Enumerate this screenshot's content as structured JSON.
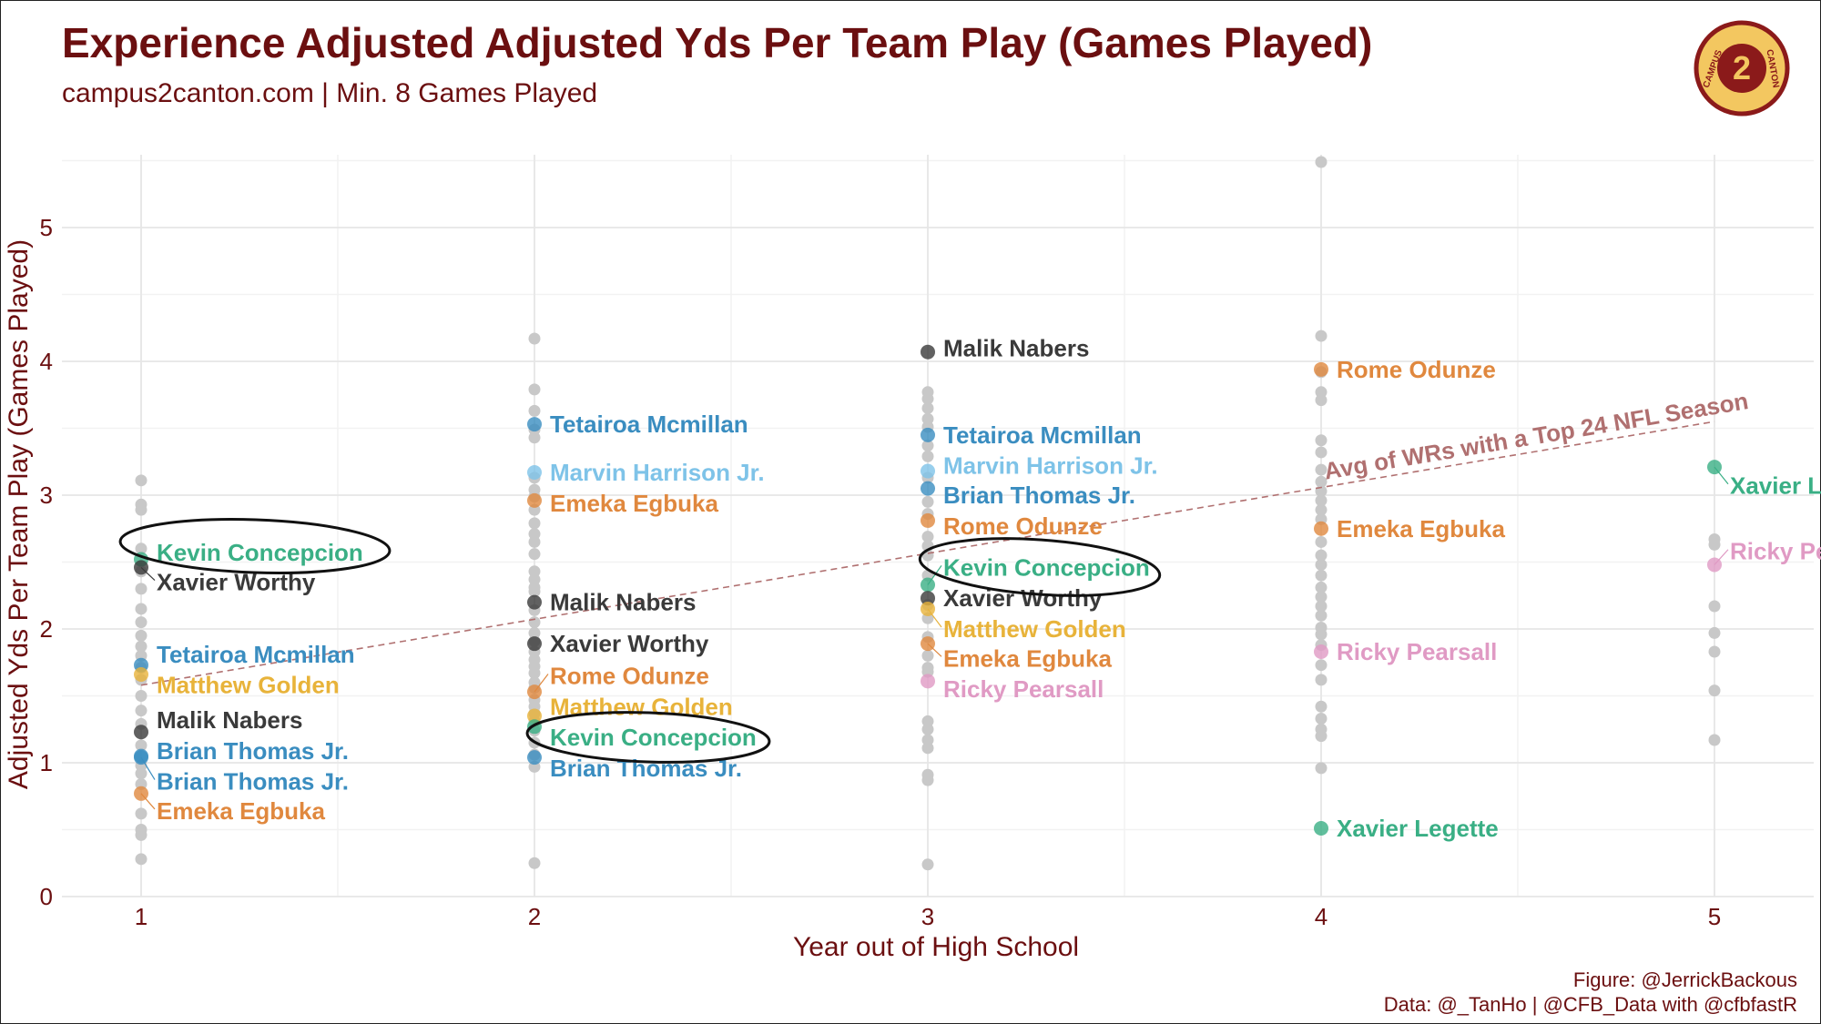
{
  "header": {
    "title": "Experience Adjusted Adjusted Yds Per Team Play (Games Played)",
    "subtitle": "campus2canton.com | Min. 8 Games Played"
  },
  "footer": {
    "figure_credit": "Figure: @JerrickBackous",
    "data_credit": "Data: @_TanHo | @CFB_Data with @cfbfastR"
  },
  "logo": {
    "line1": "CAMPUS",
    "digit": "2",
    "line2": "CANTON"
  },
  "colors": {
    "title": "#6b0f10",
    "logo_fill": "#f3c760",
    "logo_ring": "#8b1a1a",
    "background_points": "#c8c8c8",
    "trend_line": "#b07070"
  },
  "chart_data": {
    "type": "scatter",
    "title": "Experience Adjusted Adjusted Yds Per Team Play (Games Played)",
    "xlabel": "Year out of High School",
    "ylabel": "Adjusted Yds Per Team Play (Games Played)",
    "xlim": [
      0.8,
      5.25
    ],
    "ylim": [
      0,
      5.6
    ],
    "xticks": [
      1,
      2,
      3,
      4,
      5
    ],
    "yticks": [
      0,
      1,
      2,
      3,
      4,
      5
    ],
    "grid": true,
    "trend_line": {
      "label": "Avg of WRs with a Top 24 NFL Season",
      "from": [
        1,
        1.58
      ],
      "to": [
        5,
        3.55
      ],
      "style": "dashed"
    },
    "player_colors": {
      "Kevin Concepcion": "#3aaf85",
      "Xavier Worthy": "#3a3a3a",
      "Tetairoa Mcmillan": "#3a8dc0",
      "Matthew Golden": "#e8b33a",
      "Malik Nabers": "#3a3a3a",
      "Brian Thomas Jr.": "#3a8dc0",
      "Emeka Egbuka": "#e0883e",
      "Marvin Harrison Jr.": "#7ec3e8",
      "Rome Odunze": "#e0883e",
      "Ricky Pearsall": "#e09ac4",
      "Xavier Legette": "#3aaf85"
    },
    "highlighted": [
      {
        "name": "Kevin Concepcion",
        "x": 1,
        "y": 2.52,
        "label_y": 2.57
      },
      {
        "name": "Xavier Worthy",
        "x": 1,
        "y": 2.46,
        "label_y": 2.35
      },
      {
        "name": "Tetairoa Mcmillan",
        "x": 1,
        "y": 1.73,
        "label_y": 1.81
      },
      {
        "name": "Matthew Golden",
        "x": 1,
        "y": 1.66,
        "label_y": 1.58
      },
      {
        "name": "Malik Nabers",
        "x": 1,
        "y": 1.23,
        "label_y": 1.32
      },
      {
        "name": "Brian Thomas Jr.",
        "x": 1,
        "y": 1.05,
        "label_y": 1.09
      },
      {
        "name": "Brian Thomas Jr.",
        "x": 1,
        "y": 1.04,
        "label_y": 0.86
      },
      {
        "name": "Emeka Egbuka",
        "x": 1,
        "y": 0.77,
        "label_y": 0.64
      },
      {
        "name": "Tetairoa Mcmillan",
        "x": 2,
        "y": 3.53,
        "label_y": 3.53
      },
      {
        "name": "Marvin Harrison Jr.",
        "x": 2,
        "y": 3.17,
        "label_y": 3.17
      },
      {
        "name": "Emeka Egbuka",
        "x": 2,
        "y": 2.96,
        "label_y": 2.94
      },
      {
        "name": "Malik Nabers",
        "x": 2,
        "y": 2.2,
        "label_y": 2.2
      },
      {
        "name": "Xavier Worthy",
        "x": 2,
        "y": 1.89,
        "label_y": 1.89
      },
      {
        "name": "Rome Odunze",
        "x": 2,
        "y": 1.53,
        "label_y": 1.65
      },
      {
        "name": "Matthew Golden",
        "x": 2,
        "y": 1.35,
        "label_y": 1.42
      },
      {
        "name": "Kevin Concepcion",
        "x": 2,
        "y": 1.27,
        "label_y": 1.19
      },
      {
        "name": "Brian Thomas Jr.",
        "x": 2,
        "y": 1.04,
        "label_y": 0.96
      },
      {
        "name": "Malik Nabers",
        "x": 3,
        "y": 4.07,
        "label_y": 4.1
      },
      {
        "name": "Tetairoa Mcmillan",
        "x": 3,
        "y": 3.45,
        "label_y": 3.45
      },
      {
        "name": "Marvin Harrison Jr.",
        "x": 3,
        "y": 3.18,
        "label_y": 3.22
      },
      {
        "name": "Brian Thomas Jr.",
        "x": 3,
        "y": 3.05,
        "label_y": 3.0
      },
      {
        "name": "Rome Odunze",
        "x": 3,
        "y": 2.81,
        "label_y": 2.77
      },
      {
        "name": "Kevin Concepcion",
        "x": 3,
        "y": 2.33,
        "label_y": 2.46
      },
      {
        "name": "Xavier Worthy",
        "x": 3,
        "y": 2.23,
        "label_y": 2.23
      },
      {
        "name": "Matthew Golden",
        "x": 3,
        "y": 2.15,
        "label_y": 2.0
      },
      {
        "name": "Emeka Egbuka",
        "x": 3,
        "y": 1.89,
        "label_y": 1.78
      },
      {
        "name": "Ricky Pearsall",
        "x": 3,
        "y": 1.61,
        "label_y": 1.55
      },
      {
        "name": "Rome Odunze",
        "x": 4,
        "y": 3.94,
        "label_y": 3.94
      },
      {
        "name": "Emeka Egbuka",
        "x": 4,
        "y": 2.75,
        "label_y": 2.75
      },
      {
        "name": "Ricky Pearsall",
        "x": 4,
        "y": 1.83,
        "label_y": 1.83
      },
      {
        "name": "Xavier Legette",
        "x": 4,
        "y": 0.51,
        "label_y": 0.51
      },
      {
        "name": "Xavier Legette",
        "x": 5,
        "y": 3.21,
        "label_y": 3.07
      },
      {
        "name": "Ricky Pearsall",
        "x": 5,
        "y": 2.48,
        "label_y": 2.58
      }
    ],
    "others": [
      {
        "x": 1,
        "values": [
          3.11,
          2.93,
          2.89,
          2.6,
          2.43,
          2.3,
          2.15,
          2.05,
          1.95,
          1.87,
          1.8,
          1.71,
          1.62,
          1.5,
          1.39,
          1.29,
          1.13,
          0.98,
          0.92,
          0.84,
          0.62,
          0.5,
          0.46,
          0.28
        ]
      },
      {
        "x": 2,
        "values": [
          4.17,
          3.79,
          3.63,
          3.49,
          3.43,
          3.13,
          3.04,
          2.99,
          2.89,
          2.79,
          2.71,
          2.65,
          2.56,
          2.43,
          2.37,
          2.31,
          2.28,
          2.14,
          2.05,
          1.97,
          1.91,
          1.83,
          1.77,
          1.72,
          1.67,
          1.6,
          1.56,
          1.47,
          1.42,
          1.37,
          1.31,
          1.24,
          1.15,
          1.06,
          0.97,
          0.25
        ]
      },
      {
        "x": 3,
        "values": [
          3.77,
          3.72,
          3.65,
          3.57,
          3.51,
          3.37,
          3.29,
          3.13,
          2.95,
          2.86,
          2.69,
          2.62,
          2.55,
          2.4,
          2.18,
          2.08,
          1.94,
          1.8,
          1.71,
          1.68,
          1.31,
          1.25,
          1.17,
          1.11,
          0.91,
          0.87,
          0.24
        ]
      },
      {
        "x": 4,
        "values": [
          5.49,
          4.19,
          3.92,
          3.77,
          3.71,
          3.41,
          3.32,
          3.19,
          3.1,
          3.03,
          2.96,
          2.89,
          2.82,
          2.65,
          2.55,
          2.48,
          2.4,
          2.31,
          2.24,
          2.17,
          2.1,
          2.01,
          1.96,
          1.88,
          1.73,
          1.62,
          1.42,
          1.33,
          1.25,
          1.2,
          0.96
        ]
      },
      {
        "x": 5,
        "values": [
          2.67,
          2.63,
          2.17,
          1.97,
          1.83,
          1.54,
          1.17
        ]
      }
    ],
    "circled": [
      {
        "name": "Kevin Concepcion",
        "x": 1
      },
      {
        "name": "Kevin Concepcion",
        "x": 2
      },
      {
        "name": "Kevin Concepcion",
        "x": 3
      }
    ]
  }
}
